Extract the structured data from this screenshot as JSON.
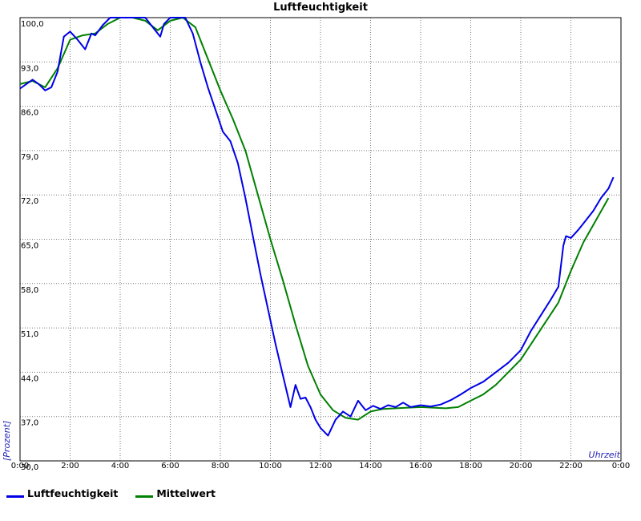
{
  "chart_data": {
    "type": "line",
    "title": "Luftfeuchtigkeit",
    "xlabel": "Uhrzeit",
    "ylabel": "[Prozent]",
    "x_ticks": [
      "0:00",
      "2:00",
      "4:00",
      "6:00",
      "8:00",
      "10:00",
      "12:00",
      "14:00",
      "16:00",
      "18:00",
      "20:00",
      "22:00",
      "0:00"
    ],
    "y_ticks": [
      "30,0",
      "37,0",
      "44,0",
      "51,0",
      "58,0",
      "65,0",
      "72,0",
      "79,0",
      "86,0",
      "93,0",
      "100,0"
    ],
    "xlim": [
      0,
      24
    ],
    "ylim": [
      30,
      100
    ],
    "grid": true,
    "legend_position": "bottom-left",
    "series": [
      {
        "name": "Luftfeuchtigkeit",
        "color": "#0000e6",
        "x": [
          0,
          0.25,
          0.5,
          0.75,
          1.0,
          1.25,
          1.5,
          1.75,
          2.0,
          2.3,
          2.6,
          2.85,
          3.0,
          3.3,
          3.6,
          4.0,
          4.5,
          5.0,
          5.3,
          5.6,
          5.75,
          6.0,
          6.3,
          6.6,
          6.9,
          7.2,
          7.5,
          7.8,
          8.1,
          8.4,
          8.7,
          9.0,
          9.3,
          9.6,
          9.9,
          10.2,
          10.5,
          10.8,
          11.0,
          11.2,
          11.4,
          11.6,
          11.8,
          12.0,
          12.3,
          12.6,
          12.9,
          13.2,
          13.5,
          13.8,
          14.1,
          14.4,
          14.7,
          15.0,
          15.3,
          15.6,
          16.0,
          16.4,
          16.8,
          17.2,
          17.6,
          18.0,
          18.5,
          19.0,
          19.5,
          20.0,
          20.4,
          20.8,
          21.2,
          21.5,
          21.7,
          21.8,
          22.0,
          22.3,
          22.6,
          22.9,
          23.2,
          23.5,
          23.7
        ],
        "values": [
          88.8,
          89.5,
          90.2,
          89.5,
          88.5,
          89.0,
          91.5,
          97.0,
          97.8,
          96.5,
          95.0,
          97.5,
          97.2,
          98.8,
          100.0,
          100.0,
          100.0,
          100.0,
          98.5,
          97.0,
          99.0,
          100.0,
          100.0,
          100.0,
          97.5,
          93.0,
          89.0,
          85.5,
          82.0,
          80.5,
          77.0,
          71.5,
          65.5,
          59.5,
          54.0,
          48.5,
          43.5,
          38.5,
          42.0,
          39.8,
          40.0,
          38.5,
          36.5,
          35.2,
          34.0,
          36.5,
          37.8,
          37.0,
          39.5,
          38.0,
          38.7,
          38.2,
          38.8,
          38.5,
          39.2,
          38.5,
          38.8,
          38.6,
          38.9,
          39.6,
          40.5,
          41.5,
          42.5,
          44.0,
          45.5,
          47.5,
          50.5,
          53.0,
          55.5,
          57.5,
          64.0,
          65.5,
          65.2,
          66.5,
          68.0,
          69.5,
          71.5,
          73.0,
          74.8
        ]
      },
      {
        "name": "Mittelwert",
        "color": "#008000",
        "x": [
          0,
          0.5,
          1.0,
          1.5,
          2.0,
          2.5,
          3.0,
          3.5,
          4.0,
          4.5,
          5.0,
          5.5,
          6.0,
          6.5,
          7.0,
          7.5,
          8.0,
          8.5,
          9.0,
          9.5,
          10.0,
          10.5,
          11.0,
          11.5,
          12.0,
          12.5,
          13.0,
          13.5,
          14.0,
          14.5,
          15.0,
          15.5,
          16.0,
          16.5,
          17.0,
          17.5,
          18.0,
          18.5,
          19.0,
          19.5,
          20.0,
          20.5,
          21.0,
          21.5,
          22.0,
          22.5,
          23.0,
          23.5
        ],
        "values": [
          89.5,
          90.0,
          89.0,
          92.0,
          96.5,
          97.2,
          97.5,
          99.0,
          100.0,
          100.0,
          99.5,
          98.0,
          99.5,
          100.0,
          98.5,
          93.5,
          88.5,
          84.0,
          79.0,
          72.0,
          65.0,
          58.5,
          51.5,
          45.0,
          40.5,
          38.0,
          36.8,
          36.5,
          37.8,
          38.2,
          38.3,
          38.4,
          38.5,
          38.4,
          38.3,
          38.5,
          39.5,
          40.5,
          42.0,
          44.0,
          46.0,
          49.0,
          52.0,
          55.0,
          60.0,
          64.5,
          68.0,
          71.5
        ]
      }
    ]
  }
}
